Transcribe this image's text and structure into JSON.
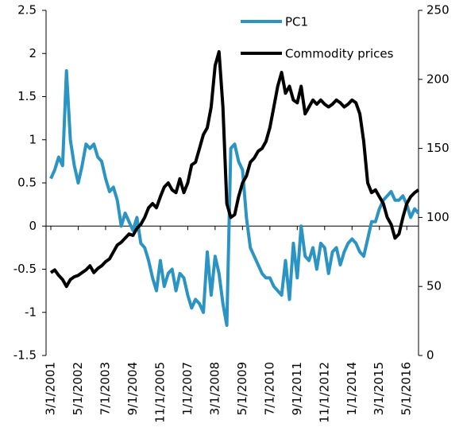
{
  "chart_data": {
    "type": "line",
    "x": [
      "3/1/2001",
      "5/1/2001",
      "7/1/2001",
      "9/1/2001",
      "11/1/2001",
      "1/1/2002",
      "3/1/2002",
      "5/1/2002",
      "7/1/2002",
      "9/1/2002",
      "11/1/2002",
      "1/1/2003",
      "3/1/2003",
      "5/1/2003",
      "7/1/2003",
      "9/1/2003",
      "11/1/2003",
      "1/1/2004",
      "3/1/2004",
      "5/1/2004",
      "7/1/2004",
      "9/1/2004",
      "11/1/2004",
      "1/1/2005",
      "3/1/2005",
      "5/1/2005",
      "7/1/2005",
      "9/1/2005",
      "11/1/2005",
      "1/1/2006",
      "3/1/2006",
      "5/1/2006",
      "7/1/2006",
      "9/1/2006",
      "11/1/2006",
      "1/1/2007",
      "3/1/2007",
      "5/1/2007",
      "7/1/2007",
      "9/1/2007",
      "11/1/2007",
      "1/1/2008",
      "3/1/2008",
      "5/1/2008",
      "7/1/2008",
      "9/1/2008",
      "11/1/2008",
      "1/1/2009",
      "3/1/2009",
      "5/1/2009",
      "7/1/2009",
      "9/1/2009",
      "11/1/2009",
      "1/1/2010",
      "3/1/2010",
      "5/1/2010",
      "7/1/2010",
      "9/1/2010",
      "11/1/2010",
      "1/1/2011",
      "3/1/2011",
      "5/1/2011",
      "7/1/2011",
      "9/1/2011",
      "11/1/2011",
      "1/1/2012",
      "3/1/2012",
      "5/1/2012",
      "7/1/2012",
      "9/1/2012",
      "11/1/2012",
      "1/1/2013",
      "3/1/2013",
      "5/1/2013",
      "7/1/2013",
      "9/1/2013",
      "11/1/2013",
      "1/1/2014",
      "3/1/2014",
      "5/1/2014",
      "7/1/2014",
      "9/1/2014",
      "11/1/2014",
      "1/1/2015",
      "3/1/2015",
      "5/1/2015",
      "7/1/2015",
      "9/1/2015",
      "11/1/2015",
      "1/1/2016",
      "3/1/2016",
      "5/1/2016",
      "7/1/2016",
      "9/1/2016",
      "11/1/2016"
    ],
    "xticks": [
      "3/1/2001",
      "5/1/2002",
      "7/1/2003",
      "9/1/2004",
      "11/1/2005",
      "1/1/2007",
      "3/1/2008",
      "5/1/2009",
      "7/1/2010",
      "9/1/2011",
      "11/1/2012",
      "1/1/2014",
      "3/1/2015",
      "5/1/2016"
    ],
    "series": [
      {
        "name": "PC1",
        "color": "#2b94c3",
        "values": [
          0.55,
          0.65,
          0.8,
          0.7,
          1.8,
          1.0,
          0.7,
          0.5,
          0.7,
          0.95,
          0.9,
          0.95,
          0.8,
          0.75,
          0.55,
          0.4,
          0.45,
          0.3,
          0.0,
          0.15,
          0.05,
          -0.05,
          0.1,
          -0.2,
          -0.25,
          -0.4,
          -0.6,
          -0.75,
          -0.4,
          -0.7,
          -0.55,
          -0.5,
          -0.75,
          -0.55,
          -0.6,
          -0.8,
          -0.95,
          -0.85,
          -0.9,
          -1.0,
          -0.3,
          -0.8,
          -0.35,
          -0.55,
          -0.9,
          -1.15,
          0.9,
          0.95,
          0.75,
          0.65,
          0.1,
          -0.25,
          -0.35,
          -0.45,
          -0.55,
          -0.6,
          -0.6,
          -0.7,
          -0.75,
          -0.8,
          -0.4,
          -0.85,
          -0.2,
          -0.6,
          0.0,
          -0.35,
          -0.4,
          -0.25,
          -0.5,
          -0.2,
          -0.25,
          -0.55,
          -0.3,
          -0.25,
          -0.45,
          -0.3,
          -0.2,
          -0.15,
          -0.2,
          -0.3,
          -0.35,
          -0.15,
          0.05,
          0.05,
          0.2,
          0.3,
          0.35,
          0.4,
          0.3,
          0.3,
          0.35,
          0.25,
          0.1,
          0.2,
          0.15
        ]
      },
      {
        "name": "Commodity prices",
        "color": "#000000",
        "axis": "y2",
        "values": [
          60,
          62,
          58,
          55,
          50,
          55,
          57,
          58,
          60,
          62,
          65,
          60,
          63,
          65,
          68,
          70,
          75,
          80,
          82,
          85,
          88,
          87,
          92,
          95,
          100,
          107,
          110,
          107,
          115,
          122,
          125,
          120,
          118,
          128,
          118,
          125,
          138,
          140,
          150,
          160,
          165,
          180,
          210,
          220,
          180,
          110,
          100,
          102,
          115,
          125,
          130,
          140,
          143,
          148,
          150,
          155,
          165,
          180,
          195,
          205,
          190,
          195,
          185,
          183,
          195,
          175,
          180,
          185,
          182,
          185,
          182,
          180,
          182,
          185,
          183,
          180,
          182,
          185,
          183,
          175,
          155,
          125,
          118,
          120,
          115,
          110,
          100,
          95,
          85,
          88,
          100,
          110,
          115,
          118,
          120
        ]
      }
    ],
    "ylim": [
      -1.5,
      2.5
    ],
    "yticks": [
      -1.5,
      -1,
      -0.5,
      0,
      0.5,
      1,
      1.5,
      2,
      2.5
    ],
    "y2lim": [
      0,
      250
    ],
    "y2ticks": [
      0,
      50,
      100,
      150,
      200,
      250
    ],
    "grid": false,
    "legend": "upper center"
  }
}
